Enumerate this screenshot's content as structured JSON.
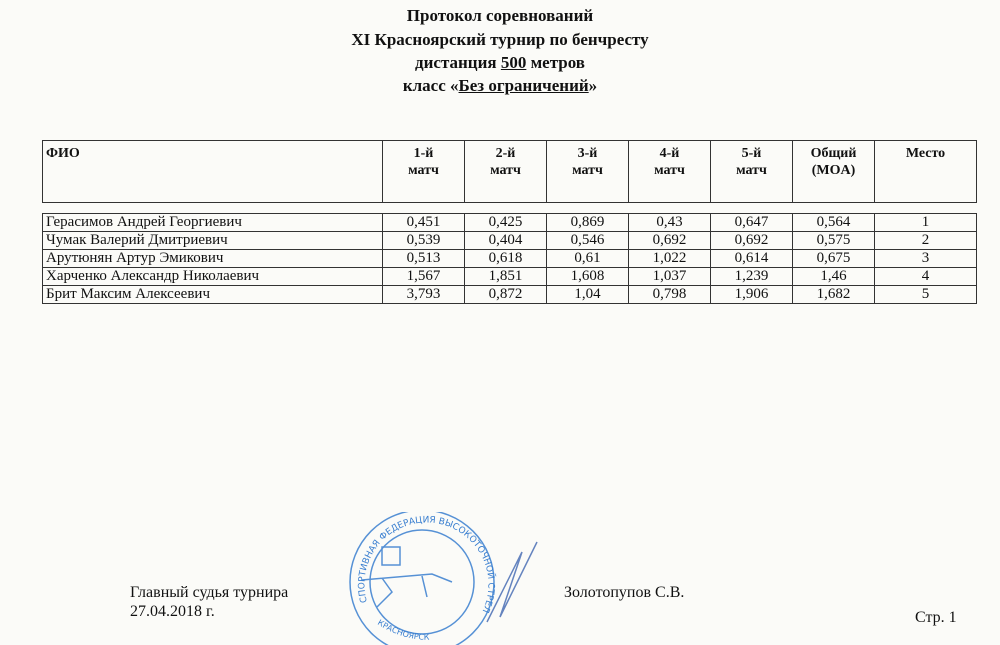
{
  "header": {
    "line1": "Протокол соревнований",
    "line2": "XI Красноярский турнир по бенчресту",
    "line3_prefix": "дистанция ",
    "line3_value": "500",
    "line3_suffix": " метров",
    "line4_prefix": "класс «",
    "line4_value": "Без ограничений",
    "line4_suffix": "»"
  },
  "table": {
    "columns": [
      {
        "l1": "ФИО",
        "l2": ""
      },
      {
        "l1": "1-й",
        "l2": "матч"
      },
      {
        "l1": "2-й",
        "l2": "матч"
      },
      {
        "l1": "3-й",
        "l2": "матч"
      },
      {
        "l1": "4-й",
        "l2": "матч"
      },
      {
        "l1": "5-й",
        "l2": "матч"
      },
      {
        "l1": "Общий",
        "l2": "(MOA)"
      },
      {
        "l1": "Место",
        "l2": ""
      }
    ],
    "rows": [
      [
        "Герасимов Андрей Георгиевич",
        "0,451",
        "0,425",
        "0,869",
        "0,43",
        "0,647",
        "0,564",
        "1"
      ],
      [
        "Чумак Валерий Дмитриевич",
        "0,539",
        "0,404",
        "0,546",
        "0,692",
        "0,692",
        "0,575",
        "2"
      ],
      [
        "Арутюнян Артур Эмикович",
        "0,513",
        "0,618",
        "0,61",
        "1,022",
        "0,614",
        "0,675",
        "3"
      ],
      [
        "Харченко Александр Николаевич",
        "1,567",
        "1,851",
        "1,608",
        "1,037",
        "1,239",
        "1,46",
        "4"
      ],
      [
        "Брит Максим Алексеевич",
        "3,793",
        "0,872",
        "1,04",
        "0,798",
        "1,906",
        "1,682",
        "5"
      ]
    ]
  },
  "footer": {
    "judge_label": "Главный судья турнира",
    "judge_name": "Золотопупов С.В.",
    "date": "27.04.2018 г.",
    "page": "Стр. 1"
  },
  "stamp": {
    "text_outer": "СПОРТИВНАЯ ФЕДЕРАЦИЯ ВЫСОКОТОЧНОЙ СТРЕЛЬБЫ (БЕНЧРЕСТА) КРАСНОЯРСКОГО КРАЯ",
    "text_bottom": "КРАСНОЯРСК",
    "color": "#3a7fd0"
  }
}
